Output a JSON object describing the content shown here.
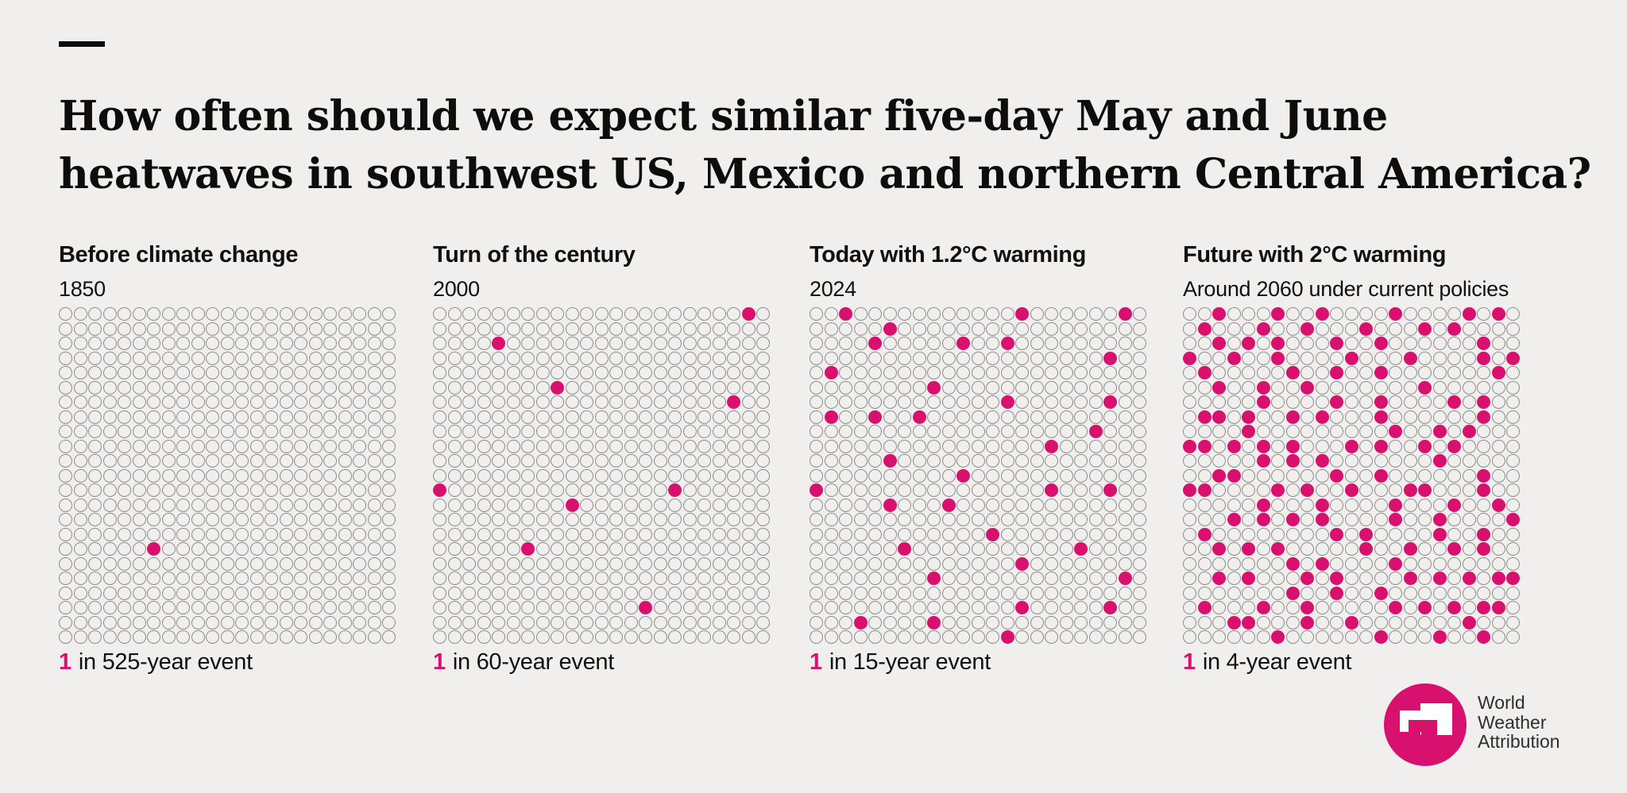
{
  "page": {
    "background": "#f0efed",
    "accent_pink": "#d9116e",
    "dot_outline_gray": "#8d8d8d"
  },
  "title_lines": [
    "How often should we expect similar five-day May and June",
    "heatwaves in southwest US, Mexico and northern Central America?"
  ],
  "chart_data": {
    "type": "dot_matrix",
    "grid": {
      "columns": 23,
      "rows": 23,
      "total_dots_per_panel": 529
    },
    "dot_fill_color": "#d9116e",
    "panels": [
      {
        "title": "Before climate change",
        "subtitle": "1850",
        "caption_value": "1",
        "caption_text": "in 525-year event",
        "return_period_years": 525,
        "filled_count": 1,
        "filled_dots_col_row": [
          [
            6,
            16
          ]
        ]
      },
      {
        "title": "Turn of the century",
        "subtitle": "2000",
        "caption_value": "1",
        "caption_text": "in 60-year event",
        "return_period_years": 60,
        "filled_count": 9,
        "filled_dots_col_row": [
          [
            21,
            0
          ],
          [
            4,
            2
          ],
          [
            8,
            5
          ],
          [
            20,
            6
          ],
          [
            0,
            12
          ],
          [
            16,
            12
          ],
          [
            9,
            13
          ],
          [
            6,
            16
          ],
          [
            14,
            20
          ]
        ]
      },
      {
        "title": "Today with 1.2°C warming",
        "subtitle": "2024",
        "caption_value": "1",
        "caption_text": "in 15-year event",
        "return_period_years": 15,
        "filled_count": 35,
        "filled_dots_col_row": [
          [
            2,
            0
          ],
          [
            14,
            0
          ],
          [
            21,
            0
          ],
          [
            5,
            1
          ],
          [
            4,
            2
          ],
          [
            10,
            2
          ],
          [
            13,
            2
          ],
          [
            20,
            3
          ],
          [
            1,
            4
          ],
          [
            8,
            5
          ],
          [
            13,
            6
          ],
          [
            20,
            6
          ],
          [
            1,
            7
          ],
          [
            4,
            7
          ],
          [
            7,
            7
          ],
          [
            19,
            8
          ],
          [
            16,
            9
          ],
          [
            5,
            10
          ],
          [
            10,
            11
          ],
          [
            0,
            12
          ],
          [
            16,
            12
          ],
          [
            20,
            12
          ],
          [
            5,
            13
          ],
          [
            9,
            13
          ],
          [
            12,
            15
          ],
          [
            6,
            16
          ],
          [
            18,
            16
          ],
          [
            14,
            17
          ],
          [
            8,
            18
          ],
          [
            21,
            18
          ],
          [
            14,
            20
          ],
          [
            20,
            20
          ],
          [
            3,
            21
          ],
          [
            8,
            21
          ],
          [
            13,
            22
          ]
        ]
      },
      {
        "title": "Future with 2°C warming",
        "subtitle": "Around 2060 under current policies",
        "caption_value": "1",
        "caption_text": "in 4-year event",
        "return_period_years": 4,
        "filled_count": 132,
        "filled_dots_col_row": [
          [
            2,
            0
          ],
          [
            6,
            0
          ],
          [
            9,
            0
          ],
          [
            14,
            0
          ],
          [
            19,
            0
          ],
          [
            21,
            0
          ],
          [
            1,
            1
          ],
          [
            5,
            1
          ],
          [
            8,
            1
          ],
          [
            12,
            1
          ],
          [
            16,
            1
          ],
          [
            18,
            1
          ],
          [
            2,
            2
          ],
          [
            4,
            2
          ],
          [
            6,
            2
          ],
          [
            10,
            2
          ],
          [
            13,
            2
          ],
          [
            20,
            2
          ],
          [
            0,
            3
          ],
          [
            3,
            3
          ],
          [
            6,
            3
          ],
          [
            11,
            3
          ],
          [
            15,
            3
          ],
          [
            20,
            3
          ],
          [
            22,
            3
          ],
          [
            1,
            4
          ],
          [
            7,
            4
          ],
          [
            10,
            4
          ],
          [
            13,
            4
          ],
          [
            21,
            4
          ],
          [
            2,
            5
          ],
          [
            5,
            5
          ],
          [
            8,
            5
          ],
          [
            16,
            5
          ],
          [
            5,
            6
          ],
          [
            10,
            6
          ],
          [
            13,
            6
          ],
          [
            18,
            6
          ],
          [
            20,
            6
          ],
          [
            1,
            7
          ],
          [
            2,
            7
          ],
          [
            4,
            7
          ],
          [
            7,
            7
          ],
          [
            9,
            7
          ],
          [
            13,
            7
          ],
          [
            20,
            7
          ],
          [
            4,
            8
          ],
          [
            14,
            8
          ],
          [
            17,
            8
          ],
          [
            19,
            8
          ],
          [
            0,
            9
          ],
          [
            1,
            9
          ],
          [
            3,
            9
          ],
          [
            5,
            9
          ],
          [
            7,
            9
          ],
          [
            11,
            9
          ],
          [
            13,
            9
          ],
          [
            16,
            9
          ],
          [
            18,
            9
          ],
          [
            5,
            10
          ],
          [
            7,
            10
          ],
          [
            9,
            10
          ],
          [
            17,
            10
          ],
          [
            2,
            11
          ],
          [
            3,
            11
          ],
          [
            10,
            11
          ],
          [
            13,
            11
          ],
          [
            20,
            11
          ],
          [
            0,
            12
          ],
          [
            1,
            12
          ],
          [
            6,
            12
          ],
          [
            8,
            12
          ],
          [
            11,
            12
          ],
          [
            15,
            12
          ],
          [
            16,
            12
          ],
          [
            20,
            12
          ],
          [
            5,
            13
          ],
          [
            9,
            13
          ],
          [
            14,
            13
          ],
          [
            18,
            13
          ],
          [
            21,
            13
          ],
          [
            3,
            14
          ],
          [
            5,
            14
          ],
          [
            7,
            14
          ],
          [
            9,
            14
          ],
          [
            14,
            14
          ],
          [
            17,
            14
          ],
          [
            22,
            14
          ],
          [
            1,
            15
          ],
          [
            10,
            15
          ],
          [
            12,
            15
          ],
          [
            17,
            15
          ],
          [
            20,
            15
          ],
          [
            2,
            16
          ],
          [
            4,
            16
          ],
          [
            6,
            16
          ],
          [
            12,
            16
          ],
          [
            15,
            16
          ],
          [
            18,
            16
          ],
          [
            20,
            16
          ],
          [
            7,
            17
          ],
          [
            9,
            17
          ],
          [
            14,
            17
          ],
          [
            2,
            18
          ],
          [
            4,
            18
          ],
          [
            8,
            18
          ],
          [
            10,
            18
          ],
          [
            15,
            18
          ],
          [
            17,
            18
          ],
          [
            19,
            18
          ],
          [
            21,
            18
          ],
          [
            22,
            18
          ],
          [
            7,
            19
          ],
          [
            10,
            19
          ],
          [
            13,
            19
          ],
          [
            1,
            20
          ],
          [
            5,
            20
          ],
          [
            8,
            20
          ],
          [
            14,
            20
          ],
          [
            16,
            20
          ],
          [
            18,
            20
          ],
          [
            20,
            20
          ],
          [
            21,
            20
          ],
          [
            3,
            21
          ],
          [
            4,
            21
          ],
          [
            8,
            21
          ],
          [
            11,
            21
          ],
          [
            19,
            21
          ],
          [
            6,
            22
          ],
          [
            13,
            22
          ],
          [
            17,
            22
          ],
          [
            20,
            22
          ]
        ]
      }
    ]
  },
  "logo": {
    "lines": [
      "World",
      "Weather",
      "Attribution"
    ],
    "circle_color": "#d9116e"
  }
}
